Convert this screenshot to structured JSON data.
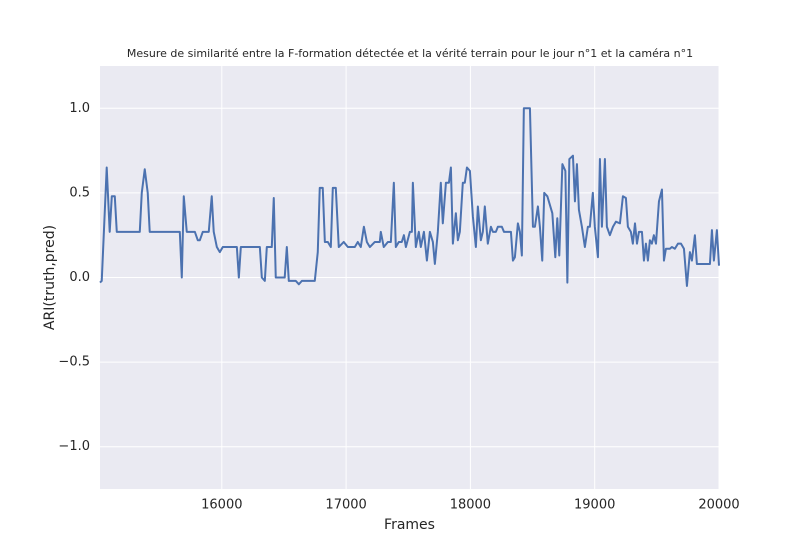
{
  "chart_data": {
    "type": "line",
    "title": "Mesure de similarité entre la F-formation détectée et la vérité terrain pour le jour n°1 et la caméra n°1",
    "x_label": "Frames",
    "y_label": "ARI(truth,pred)",
    "color": "#4c72b0",
    "grid": true,
    "xlim": [
      15020,
      20000
    ],
    "ylim": [
      -1.25,
      1.25
    ],
    "xticks": [
      16000,
      17000,
      18000,
      19000,
      20000
    ],
    "yticks": [
      {
        "value": -1.0,
        "label": "−1.0"
      },
      {
        "value": -0.5,
        "label": "−0.5"
      },
      {
        "value": 0.0,
        "label": "0.0"
      },
      {
        "value": 0.5,
        "label": "0.5"
      },
      {
        "value": 1.0,
        "label": "1.0"
      }
    ],
    "x": [
      15020,
      15034,
      15074,
      15098,
      15115,
      15139,
      15155,
      15340,
      15356,
      15380,
      15404,
      15420,
      15525,
      15541,
      15662,
      15678,
      15694,
      15718,
      15783,
      15807,
      15823,
      15847,
      15895,
      15919,
      15935,
      15960,
      15984,
      16008,
      16121,
      16137,
      16153,
      16306,
      16322,
      16346,
      16362,
      16402,
      16418,
      16434,
      16506,
      16523,
      16539,
      16595,
      16620,
      16644,
      16748,
      16772,
      16788,
      16812,
      16829,
      16853,
      16877,
      16893,
      16917,
      16941,
      16981,
      17014,
      17070,
      17094,
      17118,
      17143,
      17167,
      17191,
      17231,
      17271,
      17279,
      17303,
      17336,
      17360,
      17384,
      17400,
      17424,
      17448,
      17465,
      17481,
      17513,
      17529,
      17537,
      17561,
      17585,
      17601,
      17626,
      17650,
      17674,
      17698,
      17714,
      17738,
      17762,
      17778,
      17803,
      17827,
      17843,
      17859,
      17883,
      17899,
      17915,
      17939,
      17955,
      17972,
      17996,
      18020,
      18044,
      18060,
      18084,
      18100,
      18116,
      18140,
      18165,
      18181,
      18205,
      18221,
      18253,
      18270,
      18302,
      18326,
      18342,
      18358,
      18382,
      18398,
      18414,
      18430,
      18479,
      18503,
      18519,
      18543,
      18559,
      18578,
      18594,
      18619,
      18643,
      18659,
      18683,
      18699,
      18715,
      18740,
      18764,
      18780,
      18796,
      18825,
      18841,
      18857,
      18873,
      18897,
      18921,
      18945,
      18961,
      18985,
      19001,
      19026,
      19042,
      19058,
      19082,
      19098,
      19122,
      19147,
      19171,
      19203,
      19227,
      19251,
      19267,
      19291,
      19307,
      19324,
      19340,
      19356,
      19380,
      19396,
      19412,
      19428,
      19444,
      19460,
      19476,
      19493,
      19517,
      19541,
      19557,
      19573,
      19605,
      19621,
      19645,
      19670,
      19694,
      19718,
      19742,
      19766,
      19782,
      19806,
      19822,
      19927,
      19943,
      19959,
      19983,
      20000
    ],
    "values": [
      -0.03,
      -0.02,
      0.65,
      0.27,
      0.48,
      0.48,
      0.27,
      0.27,
      0.5,
      0.64,
      0.5,
      0.27,
      0.27,
      0.27,
      0.27,
      0.0,
      0.48,
      0.27,
      0.27,
      0.22,
      0.22,
      0.27,
      0.27,
      0.48,
      0.27,
      0.18,
      0.15,
      0.18,
      0.18,
      0.0,
      0.18,
      0.18,
      0.0,
      -0.02,
      0.18,
      0.18,
      0.47,
      0.0,
      0.0,
      0.18,
      -0.02,
      -0.02,
      -0.04,
      -0.02,
      -0.02,
      0.15,
      0.53,
      0.53,
      0.21,
      0.21,
      0.18,
      0.53,
      0.53,
      0.18,
      0.21,
      0.18,
      0.18,
      0.21,
      0.18,
      0.3,
      0.21,
      0.18,
      0.21,
      0.21,
      0.27,
      0.18,
      0.21,
      0.21,
      0.56,
      0.18,
      0.21,
      0.21,
      0.25,
      0.18,
      0.27,
      0.27,
      0.56,
      0.18,
      0.27,
      0.18,
      0.27,
      0.1,
      0.27,
      0.21,
      0.08,
      0.27,
      0.56,
      0.32,
      0.56,
      0.56,
      0.65,
      0.2,
      0.38,
      0.22,
      0.27,
      0.56,
      0.56,
      0.65,
      0.63,
      0.36,
      0.18,
      0.42,
      0.22,
      0.27,
      0.42,
      0.2,
      0.3,
      0.27,
      0.27,
      0.3,
      0.3,
      0.27,
      0.27,
      0.27,
      0.1,
      0.12,
      0.32,
      0.27,
      0.13,
      1.0,
      1.0,
      0.3,
      0.3,
      0.42,
      0.3,
      0.1,
      0.5,
      0.48,
      0.42,
      0.38,
      0.12,
      0.35,
      0.13,
      0.67,
      0.63,
      -0.03,
      0.7,
      0.72,
      0.45,
      0.67,
      0.4,
      0.3,
      0.18,
      0.3,
      0.3,
      0.5,
      0.3,
      0.12,
      0.7,
      0.3,
      0.7,
      0.3,
      0.25,
      0.3,
      0.33,
      0.32,
      0.48,
      0.47,
      0.3,
      0.27,
      0.2,
      0.32,
      0.2,
      0.27,
      0.27,
      0.1,
      0.2,
      0.1,
      0.22,
      0.2,
      0.25,
      0.2,
      0.45,
      0.52,
      0.1,
      0.17,
      0.17,
      0.18,
      0.17,
      0.2,
      0.2,
      0.17,
      -0.05,
      0.15,
      0.1,
      0.25,
      0.08,
      0.08,
      0.28,
      0.1,
      0.28,
      0.07
    ]
  }
}
